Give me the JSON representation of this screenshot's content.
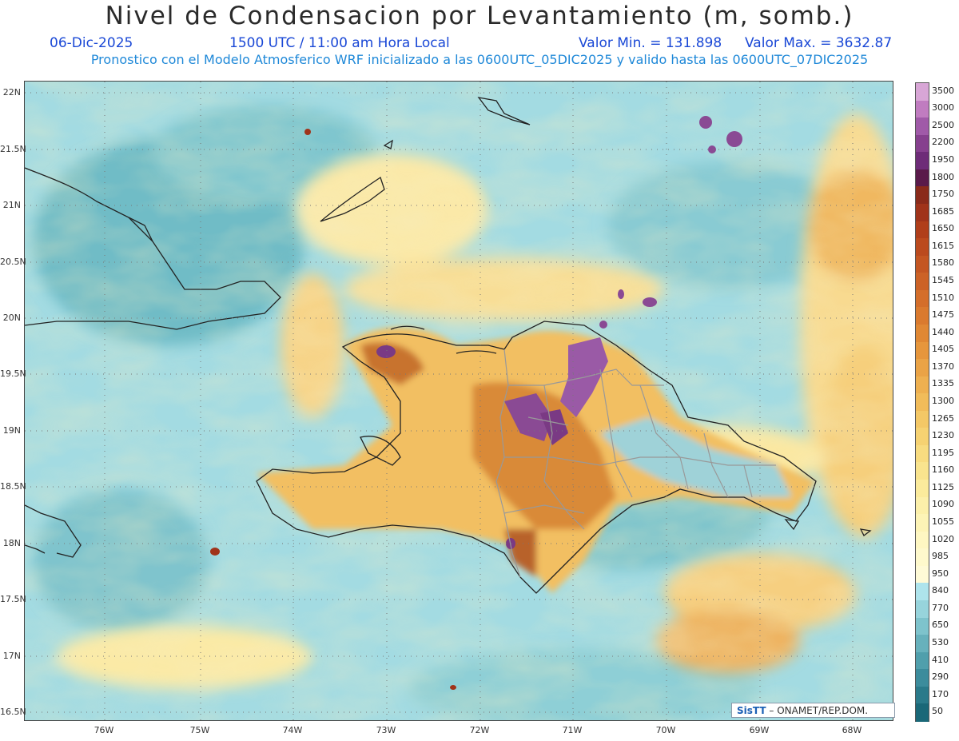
{
  "header": {
    "title": "Nivel de Condensacion por Levantamiento (m, somb.)",
    "date": "06-Dic-2025",
    "time": "1500 UTC / 11:00 am Hora Local",
    "min_label": "Valor Min. = 131.898",
    "max_label": "Valor Max. = 3632.87",
    "forecast_info": "Pronostico con el Modelo Atmosferico WRF inicializado a las 0600UTC_05DIC2025 y valido hasta las  0600UTC_07DIC2025"
  },
  "map": {
    "lat_labels": [
      "22N",
      "21.5N",
      "21N",
      "20.5N",
      "20N",
      "19.5N",
      "19N",
      "18.5N",
      "18N",
      "17.5N",
      "17N",
      "16.5N"
    ],
    "lon_labels": [
      "76W",
      "75W",
      "74W",
      "73W",
      "72W",
      "71W",
      "70W",
      "69W",
      "68W"
    ]
  },
  "colorbar": {
    "labels": [
      "3500",
      "3000",
      "2500",
      "2200",
      "1950",
      "1800",
      "1750",
      "1685",
      "1650",
      "1615",
      "1580",
      "1545",
      "1510",
      "1475",
      "1440",
      "1405",
      "1370",
      "1335",
      "1300",
      "1265",
      "1230",
      "1195",
      "1160",
      "1125",
      "1090",
      "1055",
      "1020",
      "985",
      "950",
      "840",
      "770",
      "650",
      "530",
      "410",
      "290",
      "170",
      "50"
    ],
    "colors": [
      "#d8a6d6",
      "#c07cc0",
      "#a05aa8",
      "#86408e",
      "#6e2c78",
      "#5a1a4a",
      "#8a2a1a",
      "#a0331a",
      "#b03e1a",
      "#bb4a1e",
      "#c45622",
      "#cc6226",
      "#d46e2a",
      "#da7a2e",
      "#e08834",
      "#e6963c",
      "#eaa346",
      "#eeb050",
      "#f1bc5a",
      "#f4c866",
      "#f6d272",
      "#f8dc80",
      "#f9e48e",
      "#fbeb9c",
      "#fcf0aa",
      "#fdf4b6",
      "#fef7c2",
      "#fef9cc",
      "#fefad6",
      "#aee4ec",
      "#97d4dc",
      "#7ec3cc",
      "#67b1bc",
      "#509fac",
      "#3c8c9c",
      "#2a7a8a",
      "#1a6878"
    ]
  },
  "credit": {
    "brand": "SisTT",
    "text": "– ONAMET/REP.DOM."
  }
}
